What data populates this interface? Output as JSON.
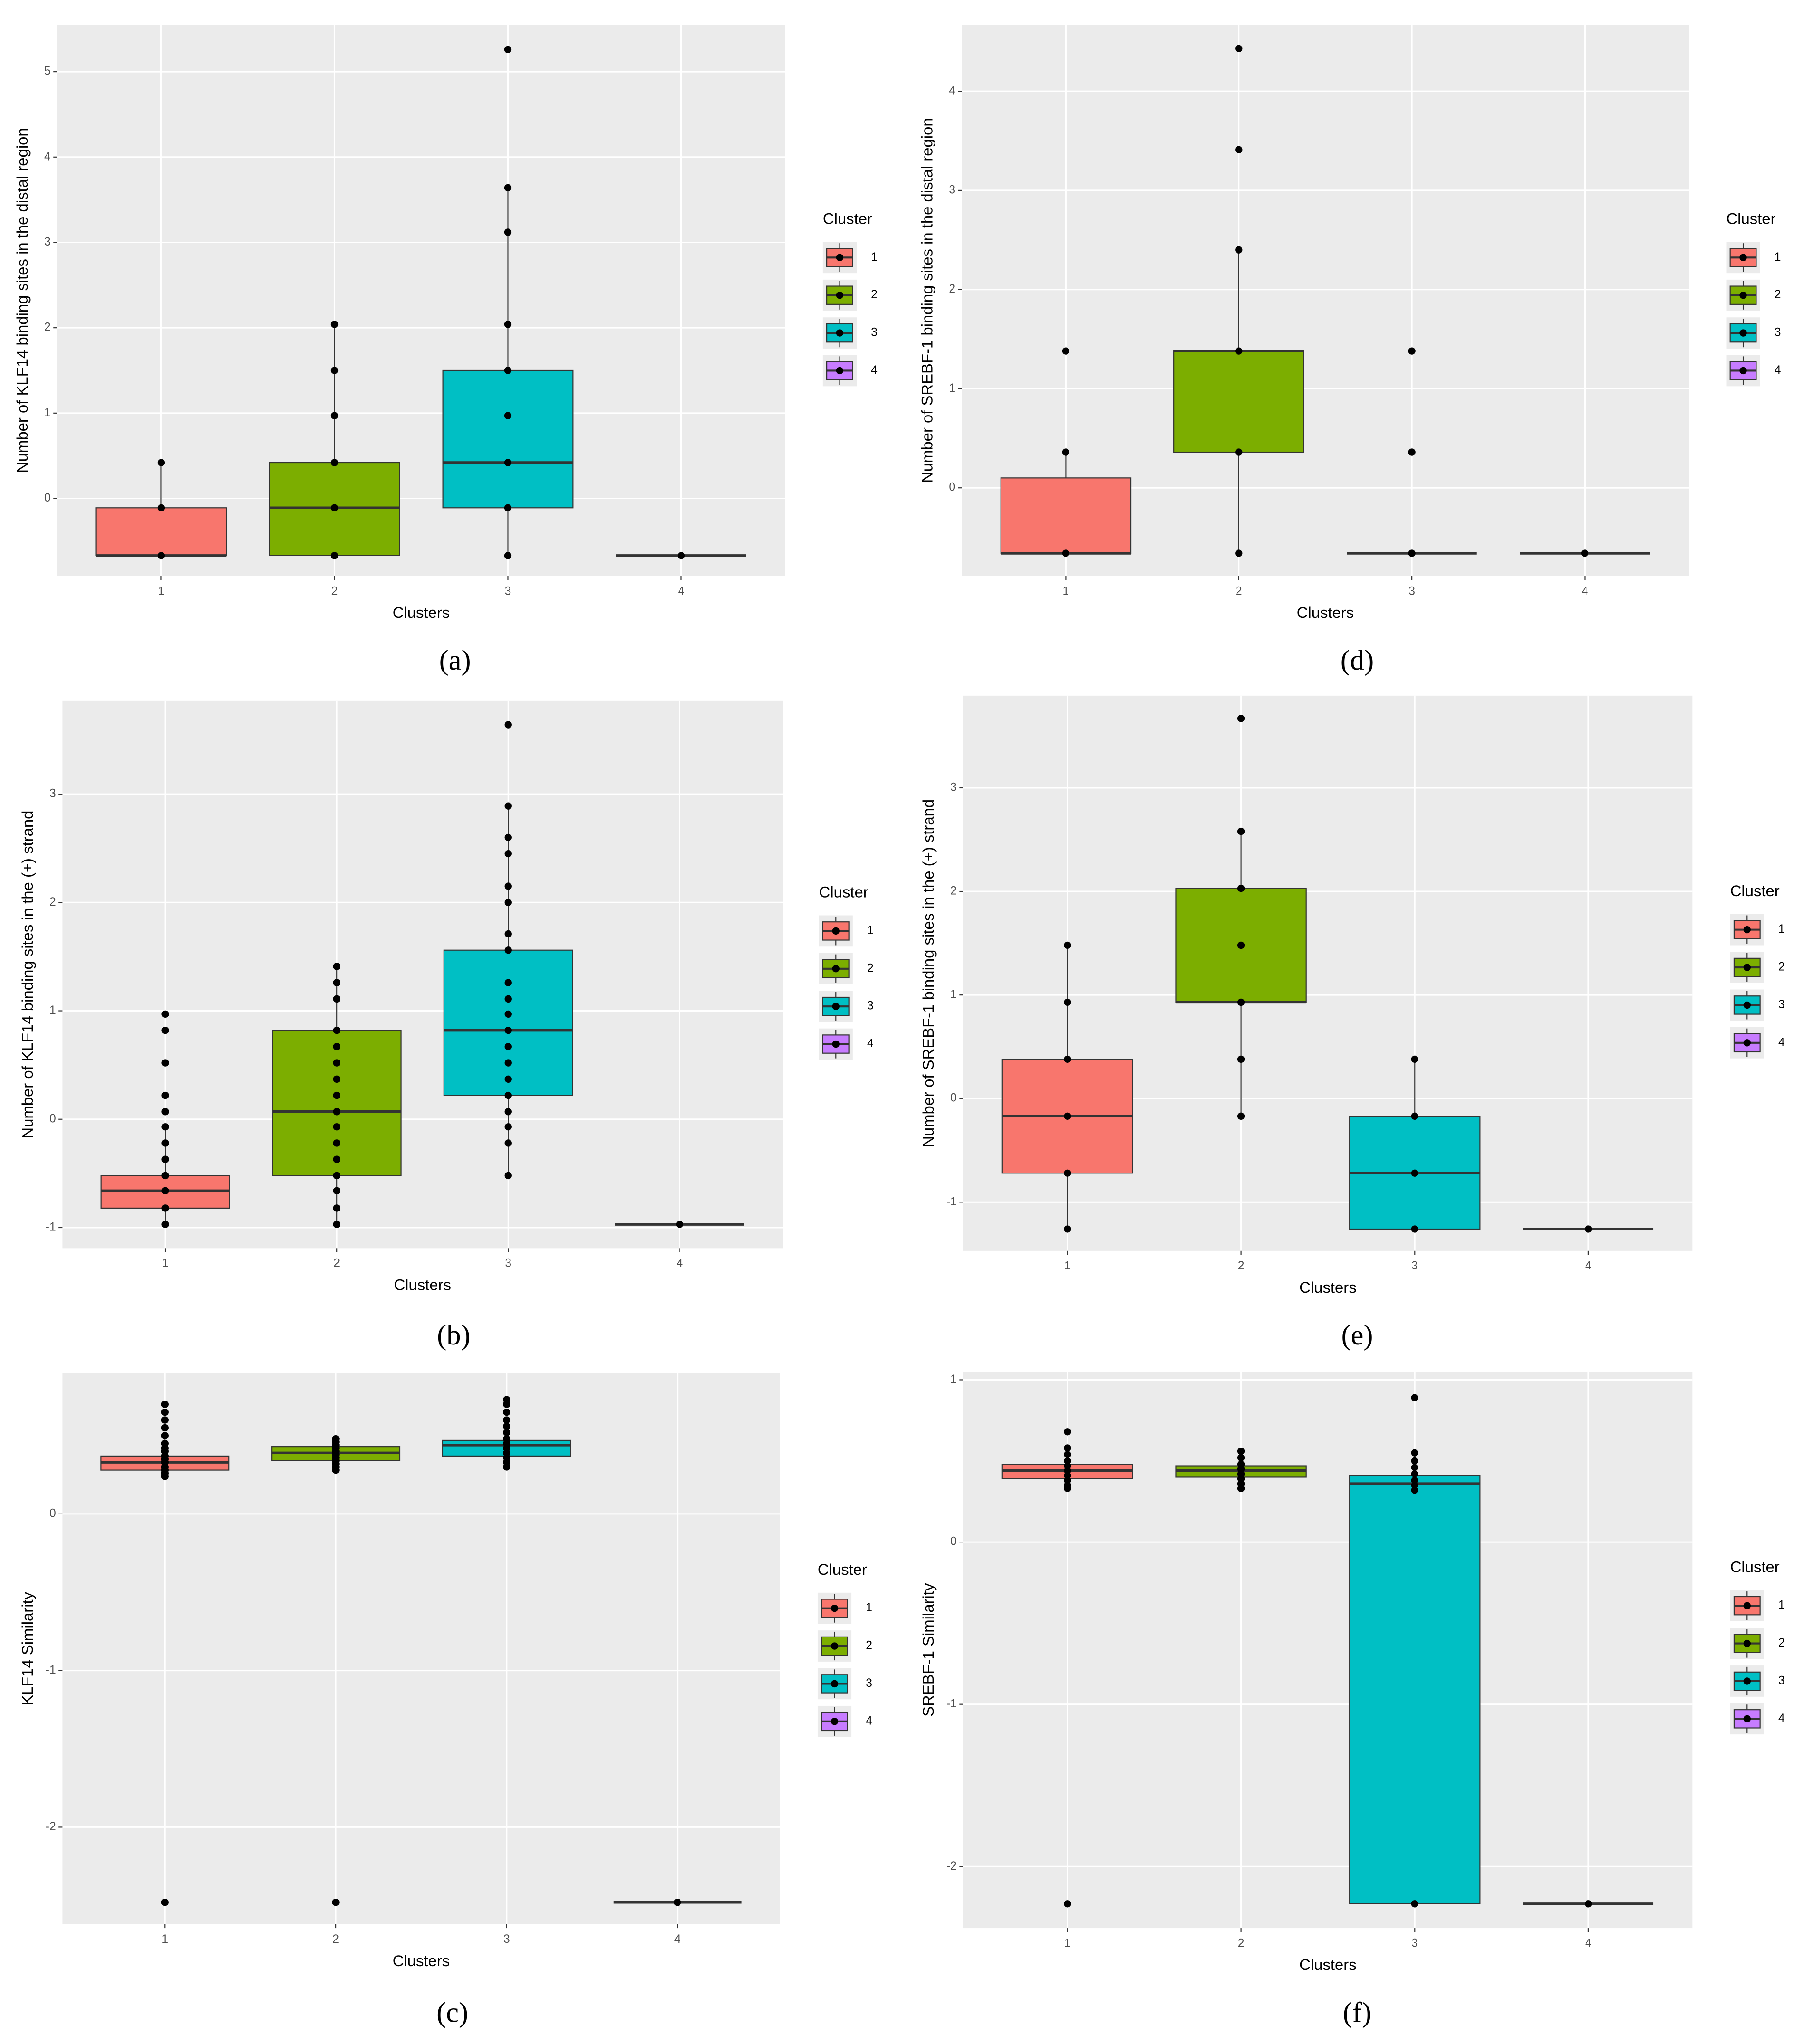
{
  "chart_data": [
    {
      "type": "box",
      "panel_label": "(a)",
      "ylabel": "Number of KLF14 binding sites in the distal region",
      "xlabel": "Clusters",
      "legend_title": "Cluster",
      "categories": [
        "1",
        "2",
        "3",
        "4"
      ],
      "ylim": [
        -0.91,
        5.55
      ],
      "yticks": [
        0,
        1,
        2,
        3,
        4,
        5
      ],
      "grid": true,
      "series": [
        {
          "name": "1",
          "color": "#F8766D",
          "min": -0.67,
          "q1": -0.67,
          "median": -0.67,
          "q3": -0.11,
          "max": 0.42,
          "points": [
            0.42,
            -0.11,
            -0.67
          ]
        },
        {
          "name": "2",
          "color": "#7CAE00",
          "min": -0.67,
          "q1": -0.67,
          "median": -0.11,
          "q3": 0.42,
          "max": 2.04,
          "points": [
            2.04,
            1.5,
            0.97,
            0.42,
            -0.11,
            -0.67
          ]
        },
        {
          "name": "3",
          "color": "#00BFC4",
          "min": -0.67,
          "q1": -0.11,
          "median": 0.42,
          "q3": 1.5,
          "max": 3.64,
          "points": [
            5.26,
            3.64,
            3.12,
            2.04,
            1.5,
            0.97,
            0.42,
            -0.11,
            -0.67
          ]
        },
        {
          "name": "4",
          "color": "#C77CFF",
          "min": -0.67,
          "q1": -0.67,
          "median": -0.67,
          "q3": -0.67,
          "max": -0.67,
          "points": [
            -0.67
          ]
        }
      ]
    },
    {
      "type": "box",
      "panel_label": "(d)",
      "ylabel": "Number of SREBF-1 binding sites in the distal region",
      "xlabel": "Clusters",
      "legend_title": "Cluster",
      "categories": [
        "1",
        "2",
        "3",
        "4"
      ],
      "ylim": [
        -0.89,
        4.67
      ],
      "yticks": [
        0,
        1,
        2,
        3,
        4
      ],
      "grid": true,
      "series": [
        {
          "name": "1",
          "color": "#F8766D",
          "min": -0.66,
          "q1": -0.66,
          "median": -0.66,
          "q3": 0.1,
          "max": 0.36,
          "points": [
            1.38,
            0.36,
            -0.66
          ]
        },
        {
          "name": "2",
          "color": "#7CAE00",
          "min": -0.66,
          "q1": 0.36,
          "median": 1.38,
          "q3": 1.38,
          "max": 2.4,
          "points": [
            4.43,
            3.41,
            2.4,
            1.38,
            0.36,
            -0.66
          ]
        },
        {
          "name": "3",
          "color": "#00BFC4",
          "min": -0.66,
          "q1": -0.66,
          "median": -0.66,
          "q3": -0.66,
          "max": -0.66,
          "points": [
            1.38,
            0.36,
            -0.66
          ]
        },
        {
          "name": "4",
          "color": "#C77CFF",
          "min": -0.66,
          "q1": -0.66,
          "median": -0.66,
          "q3": -0.66,
          "max": -0.66,
          "points": [
            -0.66
          ]
        }
      ]
    },
    {
      "type": "box",
      "panel_label": "(b)",
      "ylabel": "Number of KLF14 binding sites in the (+) strand",
      "xlabel": "Clusters",
      "legend_title": "Cluster",
      "categories": [
        "1",
        "2",
        "3",
        "4"
      ],
      "ylim": [
        -1.19,
        3.86
      ],
      "yticks": [
        -1,
        0,
        1,
        2,
        3
      ],
      "grid": true,
      "series": [
        {
          "name": "1",
          "color": "#F8766D",
          "min": -0.97,
          "q1": -0.82,
          "median": -0.66,
          "q3": -0.52,
          "max": -0.07,
          "points": [
            0.97,
            0.82,
            0.52,
            0.22,
            0.07,
            -0.07,
            -0.22,
            -0.37,
            -0.52,
            -0.66,
            -0.82,
            -0.97
          ]
        },
        {
          "name": "2",
          "color": "#7CAE00",
          "min": -0.97,
          "q1": -0.52,
          "median": 0.07,
          "q3": 0.82,
          "max": 1.41,
          "points": [
            1.41,
            1.26,
            1.11,
            0.82,
            0.67,
            0.52,
            0.37,
            0.22,
            0.07,
            -0.07,
            -0.22,
            -0.37,
            -0.52,
            -0.66,
            -0.82,
            -0.97
          ]
        },
        {
          "name": "3",
          "color": "#00BFC4",
          "min": -0.52,
          "q1": 0.22,
          "median": 0.82,
          "q3": 1.56,
          "max": 2.89,
          "points": [
            3.64,
            2.89,
            2.6,
            2.45,
            2.15,
            2.0,
            1.71,
            1.56,
            1.26,
            1.11,
            0.97,
            0.82,
            0.67,
            0.52,
            0.37,
            0.22,
            0.07,
            -0.07,
            -0.22,
            -0.52
          ]
        },
        {
          "name": "4",
          "color": "#C77CFF",
          "min": -0.97,
          "q1": -0.97,
          "median": -0.97,
          "q3": -0.97,
          "max": -0.97,
          "points": [
            -0.97
          ]
        }
      ]
    },
    {
      "type": "box",
      "panel_label": "(e)",
      "ylabel": "Number of SREBF-1 binding sites in the (+) strand",
      "xlabel": "Clusters",
      "legend_title": "Cluster",
      "categories": [
        "1",
        "2",
        "3",
        "4"
      ],
      "ylim": [
        -1.47,
        3.89
      ],
      "yticks": [
        -1,
        0,
        1,
        2,
        3
      ],
      "grid": true,
      "series": [
        {
          "name": "1",
          "color": "#F8766D",
          "min": -1.26,
          "q1": -0.72,
          "median": -0.17,
          "q3": 0.38,
          "max": 1.48,
          "points": [
            1.48,
            0.93,
            0.38,
            -0.17,
            -0.72,
            -1.26
          ]
        },
        {
          "name": "2",
          "color": "#7CAE00",
          "min": -0.17,
          "q1": 0.93,
          "median": 0.93,
          "q3": 2.03,
          "max": 2.58,
          "points": [
            3.67,
            2.58,
            2.03,
            1.48,
            0.93,
            0.38,
            -0.17
          ]
        },
        {
          "name": "3",
          "color": "#00BFC4",
          "min": -1.26,
          "q1": -1.26,
          "median": -0.72,
          "q3": -0.17,
          "max": 0.38,
          "points": [
            0.38,
            -0.17,
            -0.72,
            -1.26
          ]
        },
        {
          "name": "4",
          "color": "#C77CFF",
          "min": -1.26,
          "q1": -1.26,
          "median": -1.26,
          "q3": -1.26,
          "max": -1.26,
          "points": [
            -1.26
          ]
        }
      ]
    },
    {
      "type": "box",
      "panel_label": "(c)",
      "ylabel": "KLF14 Similarity",
      "xlabel": "Clusters",
      "legend_title": "Cluster",
      "categories": [
        "1",
        "2",
        "3",
        "4"
      ],
      "ylim": [
        -2.62,
        0.9
      ],
      "yticks": [
        -2,
        -1,
        0
      ],
      "grid": true,
      "series": [
        {
          "name": "1",
          "color": "#F8766D",
          "min": 0.24,
          "q1": 0.28,
          "median": 0.33,
          "q3": 0.37,
          "max": 0.5,
          "points": [
            0.7,
            0.65,
            0.6,
            0.55,
            0.5,
            0.45,
            0.42,
            0.4,
            0.37,
            0.35,
            0.33,
            0.3,
            0.28,
            0.26,
            0.24,
            -2.48
          ]
        },
        {
          "name": "2",
          "color": "#7CAE00",
          "min": 0.28,
          "q1": 0.34,
          "median": 0.39,
          "q3": 0.43,
          "max": 0.48,
          "points": [
            0.48,
            0.46,
            0.44,
            0.42,
            0.4,
            0.38,
            0.36,
            0.34,
            0.32,
            0.3,
            0.28,
            -2.48
          ]
        },
        {
          "name": "3",
          "color": "#00BFC4",
          "min": 0.3,
          "q1": 0.37,
          "median": 0.44,
          "q3": 0.47,
          "max": 0.6,
          "points": [
            0.73,
            0.7,
            0.65,
            0.6,
            0.56,
            0.52,
            0.48,
            0.45,
            0.42,
            0.39,
            0.36,
            0.33,
            0.3
          ]
        },
        {
          "name": "4",
          "color": "#C77CFF",
          "min": -2.48,
          "q1": -2.48,
          "median": -2.48,
          "q3": -2.48,
          "max": -2.48,
          "points": [
            -2.48
          ]
        }
      ]
    },
    {
      "type": "box",
      "panel_label": "(f)",
      "ylabel": "SREBF-1 Similarity",
      "xlabel": "Clusters",
      "legend_title": "Cluster",
      "categories": [
        "1",
        "2",
        "3",
        "4"
      ],
      "ylim": [
        -2.38,
        1.05
      ],
      "yticks": [
        -2,
        -1,
        0,
        1
      ],
      "grid": true,
      "series": [
        {
          "name": "1",
          "color": "#F8766D",
          "min": 0.33,
          "q1": 0.39,
          "median": 0.44,
          "q3": 0.48,
          "max": 0.58,
          "points": [
            0.68,
            0.58,
            0.54,
            0.5,
            0.47,
            0.44,
            0.41,
            0.38,
            0.35,
            0.33,
            -2.23
          ]
        },
        {
          "name": "2",
          "color": "#7CAE00",
          "min": 0.33,
          "q1": 0.4,
          "median": 0.44,
          "q3": 0.47,
          "max": 0.56,
          "points": [
            0.56,
            0.52,
            0.48,
            0.45,
            0.42,
            0.39,
            0.36,
            0.33
          ]
        },
        {
          "name": "3",
          "color": "#00BFC4",
          "min": -2.23,
          "q1": -2.23,
          "median": 0.36,
          "q3": 0.41,
          "max": 0.55,
          "points": [
            0.89,
            0.55,
            0.5,
            0.46,
            0.42,
            0.38,
            0.35,
            0.32,
            -2.23
          ]
        },
        {
          "name": "4",
          "color": "#C77CFF",
          "min": -2.23,
          "q1": -2.23,
          "median": -2.23,
          "q3": -2.23,
          "max": -2.23,
          "points": [
            -2.23
          ]
        }
      ]
    }
  ]
}
